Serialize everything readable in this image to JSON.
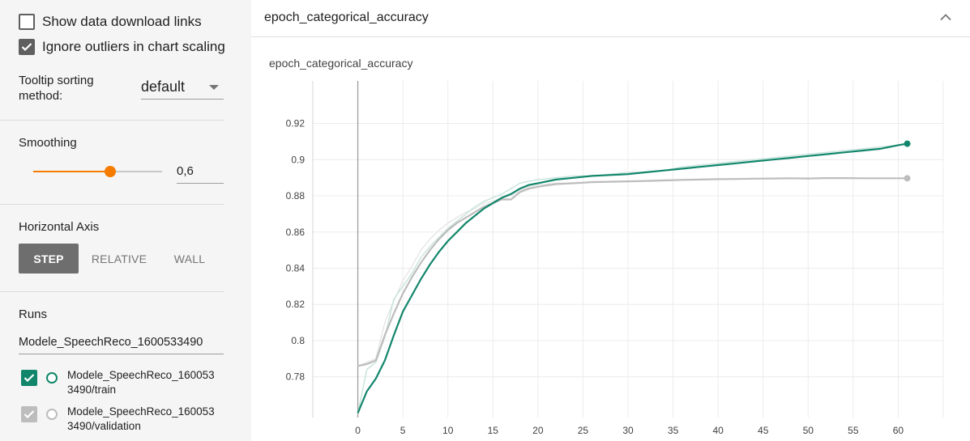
{
  "sidebar": {
    "show_download_links": {
      "label": "Show data download links",
      "checked": false
    },
    "ignore_outliers": {
      "label": "Ignore outliers in chart scaling",
      "checked": true
    },
    "tooltip": {
      "label_line1": "Tooltip sorting",
      "label_line2": "method:",
      "value": "default"
    },
    "smoothing": {
      "label": "Smoothing",
      "value": "0,6",
      "fraction": 0.6
    },
    "horizontal_axis": {
      "label": "Horizontal Axis",
      "options": [
        {
          "label": "STEP",
          "active": true
        },
        {
          "label": "RELATIVE",
          "active": false
        },
        {
          "label": "WALL",
          "active": false
        }
      ]
    },
    "runs": {
      "label": "Runs",
      "filter_value": "Modele_SpeechReco_1600533490",
      "items": [
        {
          "line1": "Modele_SpeechReco_160053",
          "line2": "3490/train",
          "checked": true,
          "color": "#12866b"
        },
        {
          "line1": "Modele_SpeechReco_160053",
          "line2": "3490/validation",
          "checked": true,
          "color": "#bdbdbd"
        }
      ]
    }
  },
  "card": {
    "title": "epoch_categorical_accuracy"
  },
  "chart_data": {
    "type": "line",
    "title": "epoch_categorical_accuracy",
    "xlabel": "",
    "ylabel": "",
    "xlim": [
      -5,
      65
    ],
    "ylim": [
      0.7575,
      0.9435
    ],
    "x_ticks": [
      "0",
      "5",
      "10",
      "15",
      "20",
      "25",
      "30",
      "35",
      "40",
      "45",
      "50",
      "55",
      "60"
    ],
    "y_ticks": [
      "0.78",
      "0.8",
      "0.82",
      "0.84",
      "0.86",
      "0.88",
      "0.9",
      "0.92"
    ],
    "grid": true,
    "series": [
      {
        "color": "#12866b",
        "raw_color": "#c7e3dc",
        "x": [
          0,
          1,
          2,
          3,
          4,
          5,
          6,
          7,
          8,
          9,
          10,
          11,
          12,
          13,
          14,
          15,
          16,
          17,
          18,
          19,
          20,
          22,
          24,
          26,
          28,
          30,
          32,
          34,
          36,
          38,
          40,
          42,
          44,
          46,
          48,
          50,
          52,
          54,
          56,
          58,
          60,
          61
        ],
        "smoothed": [
          0.76,
          0.772,
          0.779,
          0.789,
          0.803,
          0.816,
          0.825,
          0.834,
          0.842,
          0.849,
          0.855,
          0.86,
          0.865,
          0.869,
          0.873,
          0.876,
          0.879,
          0.881,
          0.884,
          0.886,
          0.887,
          0.889,
          0.89,
          0.891,
          0.8915,
          0.892,
          0.893,
          0.894,
          0.895,
          0.896,
          0.897,
          0.898,
          0.899,
          0.9,
          0.901,
          0.902,
          0.903,
          0.904,
          0.905,
          0.906,
          0.908,
          0.9088
        ],
        "raw": [
          0.76,
          0.784,
          0.788,
          0.802,
          0.823,
          0.83,
          0.837,
          0.846,
          0.852,
          0.857,
          0.862,
          0.866,
          0.87,
          0.874,
          0.877,
          0.879,
          0.881,
          0.884,
          0.887,
          0.888,
          0.889,
          0.89,
          0.891,
          0.891,
          0.892,
          0.893,
          0.893,
          0.894,
          0.896,
          0.897,
          0.898,
          0.899,
          0.9,
          0.901,
          0.902,
          0.903,
          0.904,
          0.905,
          0.906,
          0.907,
          0.908,
          0.9088
        ]
      },
      {
        "color": "#bdbdbd",
        "raw_color": "#e6e6e6",
        "x": [
          0,
          1,
          2,
          3,
          4,
          5,
          6,
          7,
          8,
          9,
          10,
          11,
          12,
          13,
          14,
          15,
          16,
          17,
          18,
          19,
          20,
          22,
          24,
          26,
          28,
          30,
          32,
          34,
          36,
          38,
          40,
          42,
          44,
          46,
          48,
          50,
          52,
          54,
          56,
          58,
          60,
          61
        ],
        "smoothed": [
          0.786,
          0.787,
          0.789,
          0.803,
          0.815,
          0.826,
          0.835,
          0.843,
          0.85,
          0.856,
          0.861,
          0.865,
          0.868,
          0.871,
          0.874,
          0.876,
          0.878,
          0.878,
          0.882,
          0.884,
          0.885,
          0.8865,
          0.887,
          0.8875,
          0.8878,
          0.888,
          0.8882,
          0.8885,
          0.8888,
          0.889,
          0.8892,
          0.8893,
          0.8895,
          0.8896,
          0.8897,
          0.8896,
          0.8898,
          0.8898,
          0.8897,
          0.8897,
          0.8897,
          0.8897
        ],
        "raw": [
          0.786,
          0.788,
          0.79,
          0.81,
          0.822,
          0.833,
          0.841,
          0.85,
          0.856,
          0.861,
          0.865,
          0.868,
          0.871,
          0.873,
          0.876,
          0.877,
          0.879,
          0.88,
          0.883,
          0.885,
          0.886,
          0.887,
          0.887,
          0.888,
          0.888,
          0.888,
          0.8885,
          0.8888,
          0.889,
          0.8892,
          0.8893,
          0.8895,
          0.8896,
          0.8897,
          0.8898,
          0.8896,
          0.8899,
          0.8898,
          0.8897,
          0.8897,
          0.8897,
          0.8897
        ]
      }
    ]
  }
}
